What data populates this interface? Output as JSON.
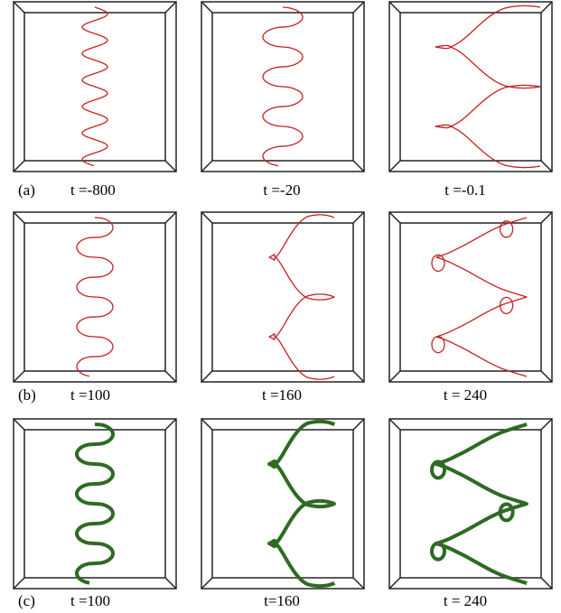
{
  "rows": [
    {
      "label": "(a)",
      "captions": [
        "t =-800",
        "t =-20",
        "t =-0.1"
      ]
    },
    {
      "label": "(b)",
      "captions": [
        "t =100",
        "t =160",
        "t = 240"
      ]
    },
    {
      "label": "(c)",
      "captions": [
        "t =100",
        "t=160",
        "t = 240"
      ]
    }
  ]
}
